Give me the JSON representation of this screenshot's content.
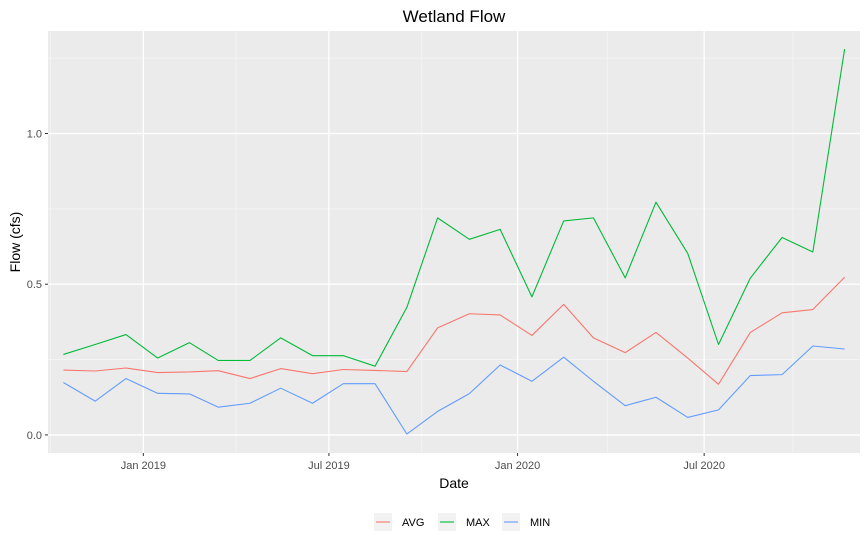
{
  "chart_data": {
    "type": "line",
    "title": "Wetland Flow",
    "xlabel": "Date",
    "ylabel": "Flow (cfs)",
    "x": [
      "2018-10-15",
      "2018-11-15",
      "2018-12-15",
      "2019-01-15",
      "2019-02-15",
      "2019-03-15",
      "2019-04-15",
      "2019-05-15",
      "2019-06-15",
      "2019-07-15",
      "2019-08-15",
      "2019-09-15",
      "2019-10-15",
      "2019-11-15",
      "2019-12-15",
      "2020-01-15",
      "2020-02-15",
      "2020-03-15",
      "2020-04-15",
      "2020-05-15",
      "2020-06-15",
      "2020-07-15",
      "2020-08-15",
      "2020-09-15",
      "2020-10-15",
      "2020-11-15"
    ],
    "series": [
      {
        "name": "AVG",
        "color": "#F8766D",
        "values": [
          0.215,
          0.212,
          0.222,
          0.207,
          0.209,
          0.213,
          0.187,
          0.22,
          0.203,
          0.217,
          0.214,
          0.21,
          0.355,
          0.402,
          0.398,
          0.33,
          0.433,
          0.322,
          0.273,
          0.34,
          0.255,
          0.168,
          0.34,
          0.405,
          0.416,
          0.523
        ]
      },
      {
        "name": "MAX",
        "color": "#00BA38",
        "values": [
          0.267,
          0.3,
          0.333,
          0.255,
          0.306,
          0.247,
          0.247,
          0.322,
          0.263,
          0.263,
          0.228,
          0.423,
          0.72,
          0.649,
          0.682,
          0.458,
          0.71,
          0.72,
          0.521,
          0.772,
          0.602,
          0.3,
          0.52,
          0.655,
          0.607,
          1.28
        ]
      },
      {
        "name": "MIN",
        "color": "#619CFF",
        "values": [
          0.174,
          0.112,
          0.187,
          0.138,
          0.136,
          0.092,
          0.105,
          0.155,
          0.105,
          0.17,
          0.17,
          0.003,
          0.078,
          0.137,
          0.232,
          0.178,
          0.258,
          0.178,
          0.097,
          0.125,
          0.058,
          0.083,
          0.197,
          0.2,
          0.295,
          0.285
        ]
      }
    ],
    "ylim": [
      -0.06,
      1.34
    ],
    "xlim": [
      "2018-09-30",
      "2020-11-30"
    ],
    "y_ticks": [
      0.0,
      0.5,
      1.0
    ],
    "y_tick_labels": [
      "0.0",
      "0.5",
      "1.0"
    ],
    "x_ticks": [
      "2019-01-01",
      "2019-07-01",
      "2020-01-01",
      "2020-07-01"
    ],
    "x_tick_labels": [
      "Jan 2019",
      "Jul 2019",
      "Jan 2020",
      "Jul 2020"
    ],
    "grid": true,
    "legend_position": "bottom",
    "panel_color": "#EBEBEB"
  }
}
